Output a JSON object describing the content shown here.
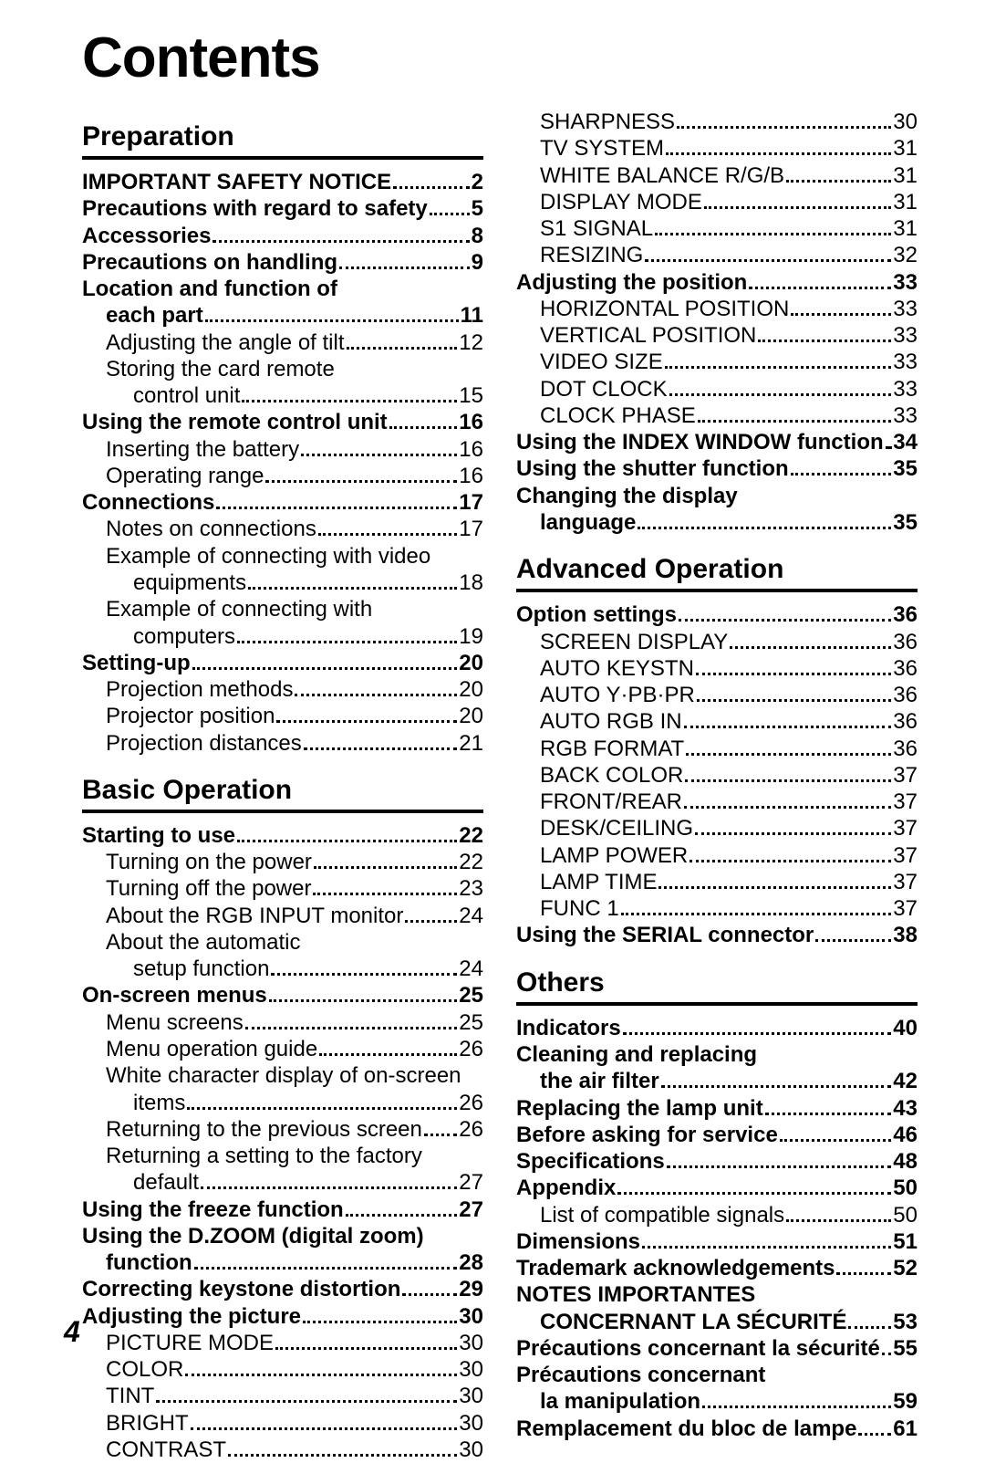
{
  "title": "Contents",
  "footerPage": "4",
  "columns": [
    {
      "sections": [
        {
          "heading": "Preparation",
          "items": [
            {
              "bold": true,
              "label": "IMPORTANT SAFETY NOTICE",
              "page": "2"
            },
            {
              "bold": true,
              "label": "Precautions with regard to safety",
              "page": "5"
            },
            {
              "bold": true,
              "label": "Accessories",
              "page": "8"
            },
            {
              "bold": true,
              "label": "Precautions on handling",
              "page": "9"
            },
            {
              "bold": true,
              "noPage": true,
              "label": "Location and function of"
            },
            {
              "bold": true,
              "indent": 1,
              "label": "each part",
              "page": "11"
            },
            {
              "indent": 1,
              "label": "Adjusting the angle of tilt",
              "page": "12"
            },
            {
              "indent": 1,
              "noPage": true,
              "label": "Storing the card remote"
            },
            {
              "indent": 2,
              "label": "control unit",
              "page": "15"
            },
            {
              "bold": true,
              "label": "Using the remote control unit",
              "page": "16"
            },
            {
              "indent": 1,
              "label": "Inserting the battery",
              "page": "16"
            },
            {
              "indent": 1,
              "label": "Operating range",
              "page": "16"
            },
            {
              "bold": true,
              "label": "Connections",
              "page": "17"
            },
            {
              "indent": 1,
              "label": "Notes on connections",
              "page": "17"
            },
            {
              "indent": 1,
              "noPage": true,
              "label": "Example of connecting with video"
            },
            {
              "indent": 2,
              "label": "equipments",
              "page": "18"
            },
            {
              "indent": 1,
              "noPage": true,
              "label": "Example of connecting with"
            },
            {
              "indent": 2,
              "label": "computers",
              "page": "19"
            },
            {
              "bold": true,
              "label": "Setting-up",
              "page": "20"
            },
            {
              "indent": 1,
              "label": "Projection methods",
              "page": "20"
            },
            {
              "indent": 1,
              "label": "Projector position",
              "page": "20"
            },
            {
              "indent": 1,
              "label": "Projection distances",
              "page": "21"
            }
          ]
        },
        {
          "heading": "Basic Operation",
          "items": [
            {
              "bold": true,
              "label": "Starting to use",
              "page": "22"
            },
            {
              "indent": 1,
              "label": "Turning on the power",
              "page": "22"
            },
            {
              "indent": 1,
              "label": "Turning off the power",
              "page": "23"
            },
            {
              "indent": 1,
              "label": "About the RGB INPUT monitor",
              "page": "24"
            },
            {
              "indent": 1,
              "noPage": true,
              "label": "About the automatic"
            },
            {
              "indent": 2,
              "label": "setup function",
              "page": "24"
            },
            {
              "bold": true,
              "label": "On-screen menus",
              "page": "25"
            },
            {
              "indent": 1,
              "label": "Menu screens",
              "page": "25"
            },
            {
              "indent": 1,
              "label": "Menu operation guide",
              "page": "26"
            },
            {
              "indent": 1,
              "noPage": true,
              "label": "White character display of on-screen"
            },
            {
              "indent": 2,
              "label": "items",
              "page": "26"
            },
            {
              "indent": 1,
              "label": "Returning to the previous screen",
              "page": "26"
            },
            {
              "indent": 1,
              "noPage": true,
              "label": "Returning a setting to the factory"
            },
            {
              "indent": 2,
              "label": "default",
              "page": "27"
            },
            {
              "bold": true,
              "label": "Using the freeze function",
              "page": "27"
            },
            {
              "bold": true,
              "noPage": true,
              "label": "Using the D.ZOOM (digital zoom)"
            },
            {
              "bold": true,
              "indent": 1,
              "label": "function",
              "page": "28"
            },
            {
              "bold": true,
              "label": "Correcting keystone distortion",
              "page": "29"
            },
            {
              "bold": true,
              "label": "Adjusting the picture",
              "page": "30"
            },
            {
              "indent": 1,
              "label": "PICTURE MODE",
              "page": "30"
            },
            {
              "indent": 1,
              "label": "COLOR",
              "page": "30"
            },
            {
              "indent": 1,
              "label": "TINT",
              "page": "30"
            },
            {
              "indent": 1,
              "label": "BRIGHT",
              "page": "30"
            },
            {
              "indent": 1,
              "label": "CONTRAST",
              "page": "30"
            }
          ]
        }
      ]
    },
    {
      "sections": [
        {
          "items": [
            {
              "indent": 1,
              "label": "SHARPNESS",
              "page": "30"
            },
            {
              "indent": 1,
              "label": "TV SYSTEM",
              "page": "31"
            },
            {
              "indent": 1,
              "label": "WHITE BALANCE R/G/B",
              "page": "31"
            },
            {
              "indent": 1,
              "label": "DISPLAY MODE",
              "page": "31"
            },
            {
              "indent": 1,
              "label": "S1 SIGNAL",
              "page": "31"
            },
            {
              "indent": 1,
              "label": "RESIZING",
              "page": "32"
            },
            {
              "bold": true,
              "label": "Adjusting the position",
              "page": "33"
            },
            {
              "indent": 1,
              "label": "HORIZONTAL POSITION",
              "page": "33"
            },
            {
              "indent": 1,
              "label": "VERTICAL POSITION",
              "page": "33"
            },
            {
              "indent": 1,
              "label": "VIDEO SIZE",
              "page": "33"
            },
            {
              "indent": 1,
              "label": "DOT CLOCK",
              "page": "33"
            },
            {
              "indent": 1,
              "label": "CLOCK PHASE",
              "page": "33"
            },
            {
              "bold": true,
              "label": "Using the INDEX WINDOW function",
              "page": "34"
            },
            {
              "bold": true,
              "label": "Using the shutter function",
              "page": "35"
            },
            {
              "bold": true,
              "noPage": true,
              "label": "Changing the display"
            },
            {
              "bold": true,
              "indent": 1,
              "label": "language",
              "page": "35"
            }
          ]
        },
        {
          "heading": "Advanced Operation",
          "items": [
            {
              "bold": true,
              "label": "Option settings",
              "page": "36"
            },
            {
              "indent": 1,
              "label": "SCREEN DISPLAY",
              "page": "36"
            },
            {
              "indent": 1,
              "label": "AUTO KEYSTN",
              "page": "36"
            },
            {
              "indent": 1,
              "label": "AUTO Y·PB·PR",
              "page": "36"
            },
            {
              "indent": 1,
              "label": "AUTO RGB IN",
              "page": "36"
            },
            {
              "indent": 1,
              "label": "RGB FORMAT",
              "page": "36"
            },
            {
              "indent": 1,
              "label": "BACK COLOR",
              "page": "37"
            },
            {
              "indent": 1,
              "label": "FRONT/REAR",
              "page": "37"
            },
            {
              "indent": 1,
              "label": "DESK/CEILING",
              "page": "37"
            },
            {
              "indent": 1,
              "label": "LAMP POWER",
              "page": "37"
            },
            {
              "indent": 1,
              "label": "LAMP TIME",
              "page": "37"
            },
            {
              "indent": 1,
              "label": "FUNC 1",
              "page": "37"
            },
            {
              "bold": true,
              "label": "Using the SERIAL connector",
              "page": "38"
            }
          ]
        },
        {
          "heading": "Others",
          "items": [
            {
              "bold": true,
              "label": "Indicators",
              "page": "40"
            },
            {
              "bold": true,
              "noPage": true,
              "label": "Cleaning and replacing"
            },
            {
              "bold": true,
              "indent": 1,
              "label": "the air filter",
              "page": "42"
            },
            {
              "bold": true,
              "label": "Replacing the lamp unit",
              "page": "43"
            },
            {
              "bold": true,
              "label": "Before asking for service",
              "page": "46"
            },
            {
              "bold": true,
              "label": "Specifications",
              "page": "48"
            },
            {
              "bold": true,
              "label": "Appendix",
              "page": "50"
            },
            {
              "indent": 1,
              "label": "List of compatible signals",
              "page": "50"
            },
            {
              "bold": true,
              "label": "Dimensions",
              "page": "51"
            },
            {
              "bold": true,
              "label": "Trademark acknowledgements",
              "page": "52"
            },
            {
              "bold": true,
              "noPage": true,
              "label": "NOTES IMPORTANTES"
            },
            {
              "bold": true,
              "indent": 1,
              "label": "CONCERNANT LA SÉCURITÉ",
              "page": "53"
            },
            {
              "bold": true,
              "label": "Précautions concernant la sécurité",
              "page": "55"
            },
            {
              "bold": true,
              "noPage": true,
              "label": "Précautions concernant"
            },
            {
              "bold": true,
              "indent": 1,
              "label": "la manipulation",
              "page": "59"
            },
            {
              "bold": true,
              "label": "Remplacement du bloc de lampe",
              "page": "61"
            }
          ]
        }
      ]
    }
  ]
}
